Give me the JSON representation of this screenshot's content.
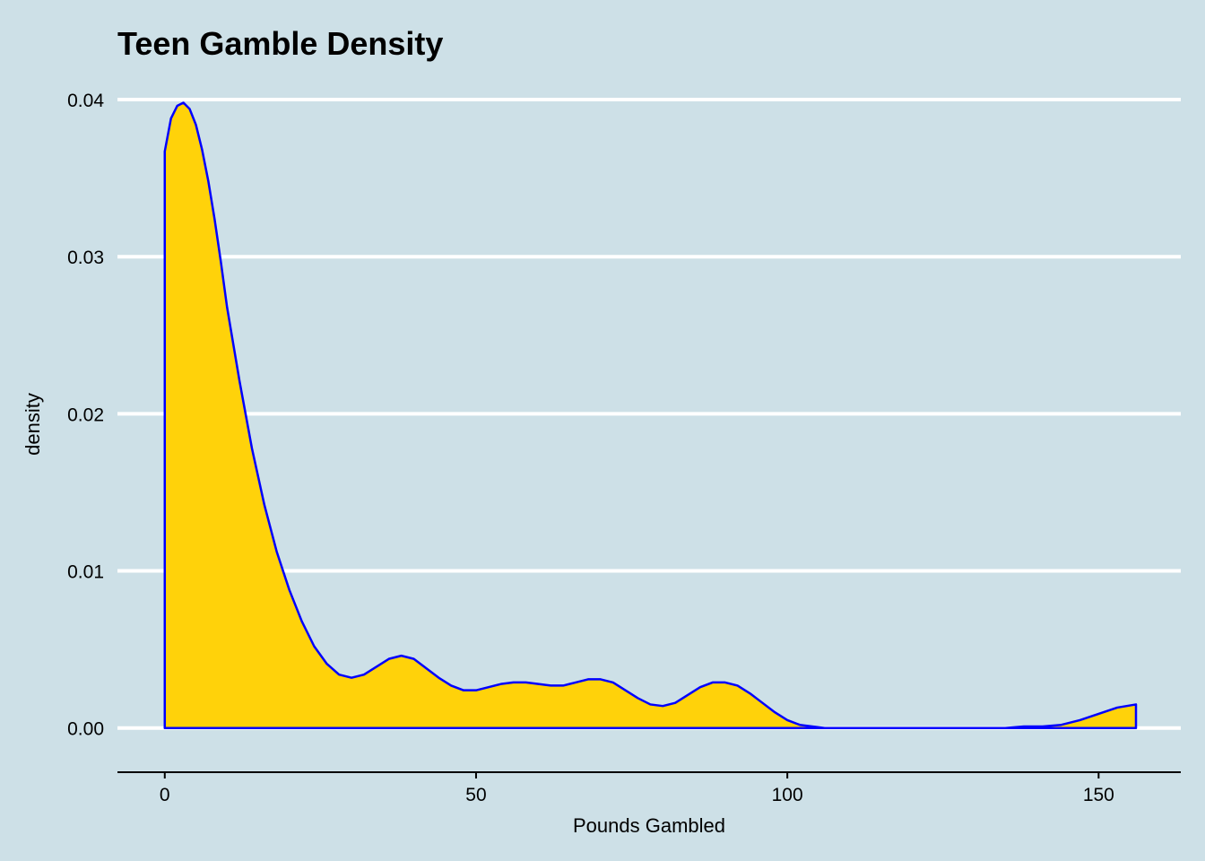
{
  "chart_data": {
    "type": "area",
    "title": "Teen Gamble Density",
    "xlabel": "Pounds Gambled",
    "ylabel": "density",
    "xlim": [
      -7.6,
      163.2
    ],
    "ylim": [
      -0.0019,
      0.0412
    ],
    "x_ticks": [
      0,
      50,
      100,
      150
    ],
    "x_tick_labels": [
      "0",
      "50",
      "100",
      "150"
    ],
    "y_ticks": [
      0.0,
      0.01,
      0.02,
      0.03,
      0.04
    ],
    "y_tick_labels": [
      "0.00",
      "0.01",
      "0.02",
      "0.03",
      "0.04"
    ],
    "grid": "horizontal major only",
    "legend": "none",
    "colors": {
      "background": "#cde0e7",
      "fill": "#ffd20a",
      "line": "#0000ff",
      "grid": "#ffffff",
      "axis": "#000000"
    },
    "series": [
      {
        "x": [
          0,
          1,
          2,
          3,
          4,
          5,
          6,
          7,
          8,
          9,
          10,
          12,
          14,
          16,
          18,
          20,
          22,
          24,
          26,
          28,
          30,
          32,
          34,
          36,
          38,
          40,
          42,
          44,
          46,
          48,
          50,
          52,
          54,
          56,
          58,
          60,
          62,
          64,
          66,
          68,
          70,
          72,
          74,
          76,
          78,
          80,
          82,
          84,
          86,
          88,
          90,
          92,
          94,
          96,
          98,
          100,
          102,
          104,
          106,
          108,
          110,
          115,
          120,
          125,
          130,
          135,
          138,
          141,
          144,
          147,
          150,
          153,
          156
        ],
        "y": [
          0.0367,
          0.0388,
          0.0396,
          0.0398,
          0.0394,
          0.0384,
          0.0368,
          0.0348,
          0.0324,
          0.0297,
          0.0268,
          0.0221,
          0.0178,
          0.0142,
          0.0112,
          0.0088,
          0.0068,
          0.0052,
          0.0041,
          0.0034,
          0.0032,
          0.0034,
          0.0039,
          0.0044,
          0.0046,
          0.0044,
          0.0038,
          0.0032,
          0.0027,
          0.0024,
          0.0024,
          0.0026,
          0.0028,
          0.0029,
          0.0029,
          0.0028,
          0.0027,
          0.0027,
          0.0029,
          0.0031,
          0.0031,
          0.0029,
          0.0024,
          0.0019,
          0.0015,
          0.0014,
          0.0016,
          0.0021,
          0.0026,
          0.0029,
          0.0029,
          0.0027,
          0.0022,
          0.0016,
          0.001,
          0.0005,
          0.0002,
          0.0001,
          0.0,
          0.0,
          0.0,
          0.0,
          0.0,
          0.0,
          0.0,
          0.0,
          0.0001,
          0.0001,
          0.0002,
          0.0005,
          0.0009,
          0.0013,
          0.0015
        ]
      }
    ]
  }
}
